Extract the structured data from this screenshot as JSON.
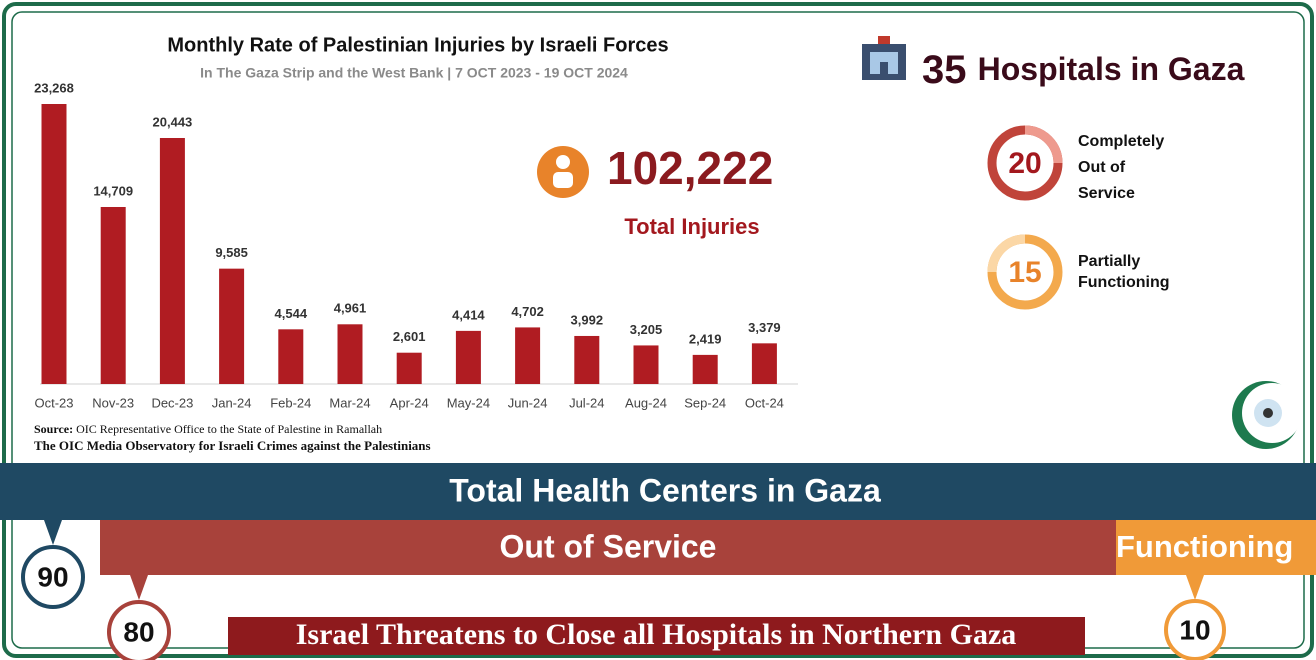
{
  "chart_data": {
    "type": "bar",
    "title": "Monthly Rate of Palestinian Injuries by Israeli Forces",
    "subtitle": "In The Gaza Strip and the West Bank | 7 OCT 2023 - 19 OCT 2024",
    "categories": [
      "Oct-23",
      "Nov-23",
      "Dec-23",
      "Jan-24",
      "Feb-24",
      "Mar-24",
      "Apr-24",
      "May-24",
      "Jun-24",
      "Jul-24",
      "Aug-24",
      "Sep-24",
      "Oct-24"
    ],
    "values": [
      23268,
      14709,
      20443,
      9585,
      4544,
      4961,
      2601,
      4414,
      4702,
      3992,
      3205,
      2419,
      3379
    ],
    "value_labels": [
      "23,268",
      "14,709",
      "20,443",
      "9,585",
      "4,544",
      "4,961",
      "2,601",
      "4,414",
      "4,702",
      "3,992",
      "3,205",
      "2,419",
      "3,379"
    ],
    "color": "#b01c22",
    "source_label": "Source:",
    "source": "OIC Representative Office to the State of Palestine in Ramallah",
    "credit": "The OIC Media Observatory for Israeli Crimes against the Palestinians"
  },
  "total_injuries": {
    "value": "102,222",
    "label": "Total Injuries"
  },
  "hospitals": {
    "count": 35,
    "label": "Hospitals in Gaza",
    "out_of_service": {
      "value": 20,
      "lines": [
        "Completely",
        "Out of",
        "Service"
      ]
    },
    "partial": {
      "value": 15,
      "lines": [
        "Partially",
        "Functioning"
      ]
    }
  },
  "health_centers": {
    "title": "Total Health Centers in Gaza",
    "total": 90,
    "out_of_service": {
      "label": "Out of Service",
      "value": 80
    },
    "functioning": {
      "label": "Functioning",
      "value": 10
    }
  },
  "headline": "Israel Threatens to Close all Hospitals in Northern Gaza"
}
